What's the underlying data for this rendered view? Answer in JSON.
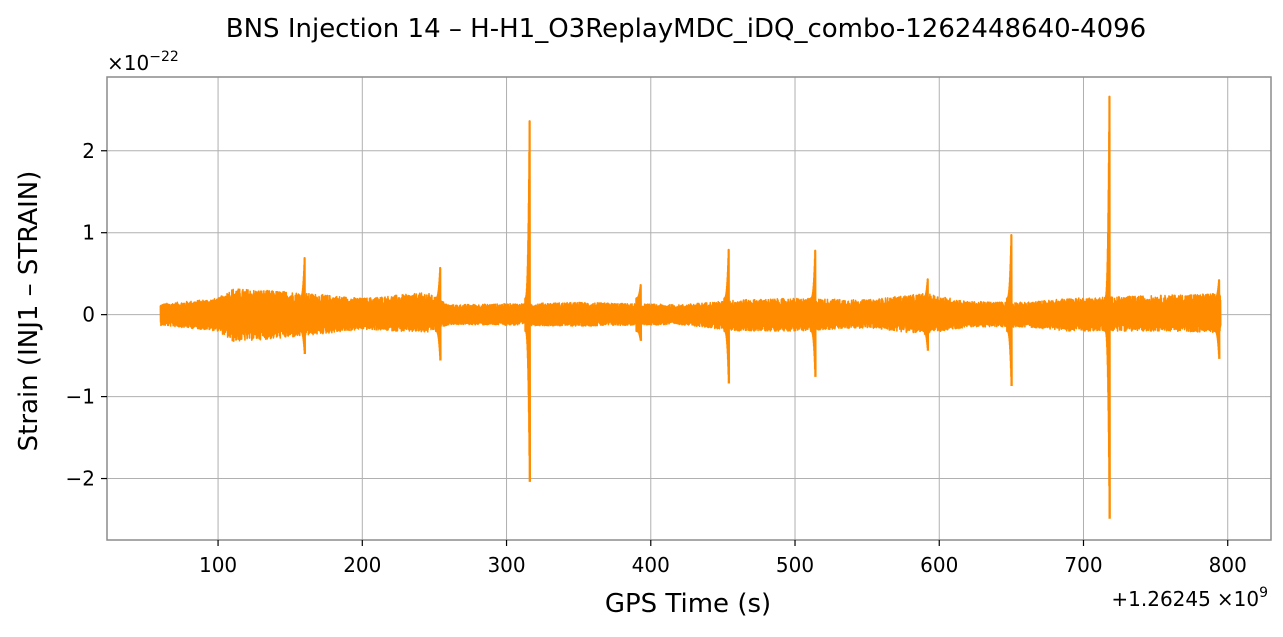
{
  "chart_data": {
    "type": "line",
    "title": "BNS Injection 14 – H-H1_O3ReplayMDC_iDQ_combo-1262448640-4096",
    "xlabel": "GPS Time (s)",
    "ylabel": "Strain (INJ1 – STRAIN)",
    "x_offset_label": "+1.26245",
    "x_offset_multiplier": "×10",
    "x_offset_exponent": "9",
    "y_scale_base": "×10",
    "y_scale_exponent": "−22",
    "xlim": [
      23,
      830
    ],
    "ylim": [
      -2.75,
      2.9
    ],
    "x_ticks": [
      100,
      200,
      300,
      400,
      500,
      600,
      700,
      800
    ],
    "x_tick_labels": [
      "100",
      "200",
      "300",
      "400",
      "500",
      "600",
      "700",
      "800"
    ],
    "y_ticks": [
      -2,
      -1,
      0,
      1,
      2
    ],
    "y_tick_labels": [
      "−2",
      "−1",
      "0",
      "1",
      "2"
    ],
    "grid": true,
    "color": "#ff8c00",
    "series": [
      {
        "x_range": [
          60,
          795
        ],
        "baseline_envelope": [
          {
            "x": 60,
            "upper": 0.13,
            "lower": -0.13
          },
          {
            "x": 100,
            "upper": 0.2,
            "lower": -0.2
          },
          {
            "x": 110,
            "upper": 0.32,
            "lower": -0.33
          },
          {
            "x": 150,
            "upper": 0.28,
            "lower": -0.28
          },
          {
            "x": 200,
            "upper": 0.2,
            "lower": -0.18
          },
          {
            "x": 245,
            "upper": 0.27,
            "lower": -0.22
          },
          {
            "x": 260,
            "upper": 0.12,
            "lower": -0.12
          },
          {
            "x": 350,
            "upper": 0.15,
            "lower": -0.14
          },
          {
            "x": 420,
            "upper": 0.12,
            "lower": -0.12
          },
          {
            "x": 460,
            "upper": 0.18,
            "lower": -0.2
          },
          {
            "x": 500,
            "upper": 0.2,
            "lower": -0.2
          },
          {
            "x": 550,
            "upper": 0.18,
            "lower": -0.16
          },
          {
            "x": 590,
            "upper": 0.26,
            "lower": -0.24
          },
          {
            "x": 620,
            "upper": 0.16,
            "lower": -0.15
          },
          {
            "x": 660,
            "upper": 0.15,
            "lower": -0.15
          },
          {
            "x": 690,
            "upper": 0.2,
            "lower": -0.2
          },
          {
            "x": 760,
            "upper": 0.24,
            "lower": -0.2
          },
          {
            "x": 795,
            "upper": 0.26,
            "lower": -0.22
          }
        ],
        "spikes": [
          {
            "x": 160,
            "max": 0.69,
            "min": -0.48
          },
          {
            "x": 254,
            "max": 0.57,
            "min": -0.56
          },
          {
            "x": 316,
            "max": 2.36,
            "min": -2.04
          },
          {
            "x": 393,
            "max": 0.36,
            "min": -0.32
          },
          {
            "x": 454,
            "max": 0.79,
            "min": -0.84
          },
          {
            "x": 514,
            "max": 0.78,
            "min": -0.76
          },
          {
            "x": 592,
            "max": 0.43,
            "min": -0.44
          },
          {
            "x": 650,
            "max": 0.97,
            "min": -0.87
          },
          {
            "x": 718,
            "max": 2.66,
            "min": -2.49
          },
          {
            "x": 794,
            "max": 0.42,
            "min": -0.54
          }
        ]
      }
    ]
  }
}
